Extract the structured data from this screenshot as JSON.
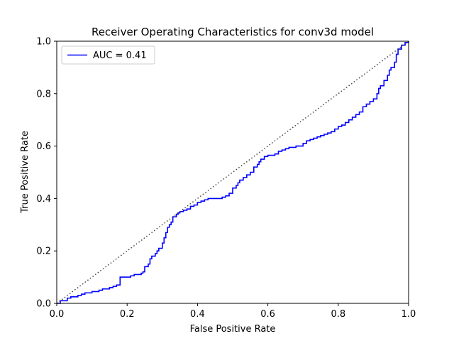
{
  "chart_data": {
    "type": "line",
    "title": "Receiver Operating Characteristics for conv3d model",
    "xlabel": "False Positive Rate",
    "ylabel": "True Positive Rate",
    "xlim": [
      0,
      1
    ],
    "ylim": [
      0,
      1
    ],
    "xticks": [
      "0.0",
      "0.2",
      "0.4",
      "0.6",
      "0.8",
      "1.0"
    ],
    "yticks": [
      "0.0",
      "0.2",
      "0.4",
      "0.6",
      "0.8",
      "1.0"
    ],
    "grid": false,
    "legend_position": "upper-left",
    "series": [
      {
        "name": "AUC = 0.41",
        "color": "#0000ff",
        "style": "step",
        "x": [
          0.0,
          0.01,
          0.02,
          0.03,
          0.04,
          0.05,
          0.06,
          0.07,
          0.08,
          0.1,
          0.12,
          0.13,
          0.15,
          0.16,
          0.17,
          0.18,
          0.19,
          0.21,
          0.22,
          0.23,
          0.24,
          0.245,
          0.25,
          0.26,
          0.265,
          0.27,
          0.28,
          0.285,
          0.29,
          0.3,
          0.305,
          0.31,
          0.315,
          0.32,
          0.325,
          0.33,
          0.34,
          0.345,
          0.35,
          0.36,
          0.37,
          0.38,
          0.39,
          0.4,
          0.41,
          0.42,
          0.43,
          0.44,
          0.45,
          0.46,
          0.47,
          0.48,
          0.49,
          0.5,
          0.51,
          0.515,
          0.52,
          0.53,
          0.54,
          0.55,
          0.56,
          0.57,
          0.575,
          0.58,
          0.59,
          0.6,
          0.61,
          0.62,
          0.63,
          0.64,
          0.65,
          0.66,
          0.67,
          0.68,
          0.69,
          0.7,
          0.71,
          0.72,
          0.73,
          0.74,
          0.75,
          0.76,
          0.77,
          0.78,
          0.79,
          0.8,
          0.81,
          0.82,
          0.83,
          0.84,
          0.85,
          0.86,
          0.87,
          0.88,
          0.89,
          0.9,
          0.91,
          0.915,
          0.92,
          0.93,
          0.94,
          0.945,
          0.95,
          0.96,
          0.965,
          0.97,
          0.98,
          0.99,
          1.0
        ],
        "y": [
          0.0,
          0.01,
          0.01,
          0.02,
          0.025,
          0.025,
          0.03,
          0.035,
          0.04,
          0.045,
          0.05,
          0.055,
          0.06,
          0.065,
          0.07,
          0.1,
          0.1,
          0.105,
          0.11,
          0.11,
          0.115,
          0.12,
          0.14,
          0.15,
          0.17,
          0.18,
          0.19,
          0.2,
          0.21,
          0.23,
          0.25,
          0.27,
          0.29,
          0.3,
          0.31,
          0.33,
          0.34,
          0.345,
          0.35,
          0.355,
          0.36,
          0.37,
          0.375,
          0.385,
          0.39,
          0.395,
          0.4,
          0.4,
          0.4,
          0.4,
          0.405,
          0.41,
          0.42,
          0.44,
          0.45,
          0.46,
          0.47,
          0.48,
          0.49,
          0.5,
          0.52,
          0.53,
          0.54,
          0.55,
          0.56,
          0.565,
          0.565,
          0.57,
          0.58,
          0.585,
          0.59,
          0.595,
          0.595,
          0.6,
          0.6,
          0.61,
          0.62,
          0.625,
          0.63,
          0.635,
          0.64,
          0.645,
          0.65,
          0.655,
          0.665,
          0.675,
          0.68,
          0.69,
          0.7,
          0.71,
          0.72,
          0.73,
          0.75,
          0.76,
          0.77,
          0.78,
          0.8,
          0.82,
          0.83,
          0.85,
          0.87,
          0.89,
          0.9,
          0.92,
          0.95,
          0.97,
          0.985,
          0.995,
          1.0
        ]
      },
      {
        "name": "",
        "color": "#444444",
        "style": "dotted",
        "x": [
          0,
          1
        ],
        "y": [
          0,
          1
        ]
      }
    ]
  }
}
